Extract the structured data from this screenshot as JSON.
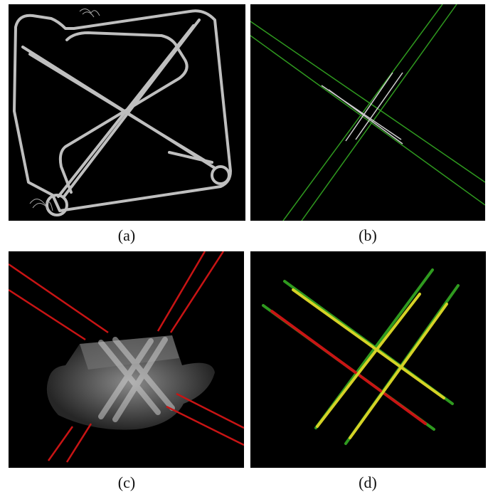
{
  "figure": {
    "panels": [
      {
        "id": "a",
        "caption": "(a)",
        "content": "cable-tube-render"
      },
      {
        "id": "b",
        "caption": "(b)",
        "content": "crossing-lines-green"
      },
      {
        "id": "c",
        "caption": "(c)",
        "content": "volume-with-red-lines"
      },
      {
        "id": "d",
        "caption": "(d)",
        "content": "overlay-green-yellow-red"
      }
    ]
  },
  "colors": {
    "background": "#000000",
    "tube": "#c8c8c8",
    "green": "#2f9a1f",
    "red": "#c81414",
    "yellow": "#d6d226"
  }
}
